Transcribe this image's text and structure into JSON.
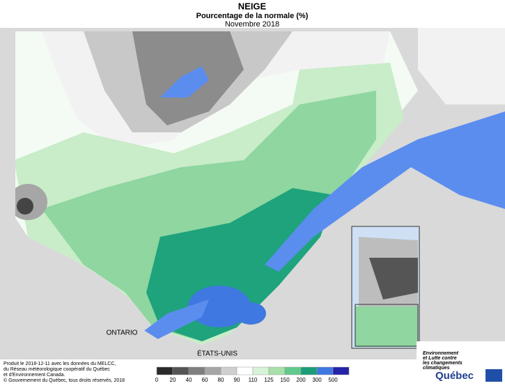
{
  "header": {
    "title": "NEIGE",
    "subtitle": "Pourcentage de la normale (%)",
    "date": "Novembre 2018"
  },
  "places": {
    "ontario": "ONTARIO",
    "usa": "ÉTATS-UNIS"
  },
  "credits": [
    "Produit le 2018-12-11 avec les données du MELCC,",
    "du Réseau météorologique coopératif du Québec",
    "et d'Environnement Canada.",
    "© Gouvernement du Québec, tous droits réservés, 2018"
  ],
  "legend": {
    "ticks": [
      0,
      20,
      40,
      60,
      80,
      90,
      110,
      125,
      150,
      200,
      300,
      500
    ],
    "colors": [
      "#2a2a2a",
      "#555555",
      "#7f7f7f",
      "#a6a6a6",
      "#cfcfcf",
      "#ffffff",
      "#d8f2d8",
      "#a9e0a9",
      "#62c98c",
      "#1a9e78",
      "#3f78e0",
      "#2424a8"
    ]
  },
  "logo": {
    "lines": [
      "Environnement",
      "et Lutte contre",
      "les changements",
      "climatiques"
    ],
    "name": "Québec"
  }
}
